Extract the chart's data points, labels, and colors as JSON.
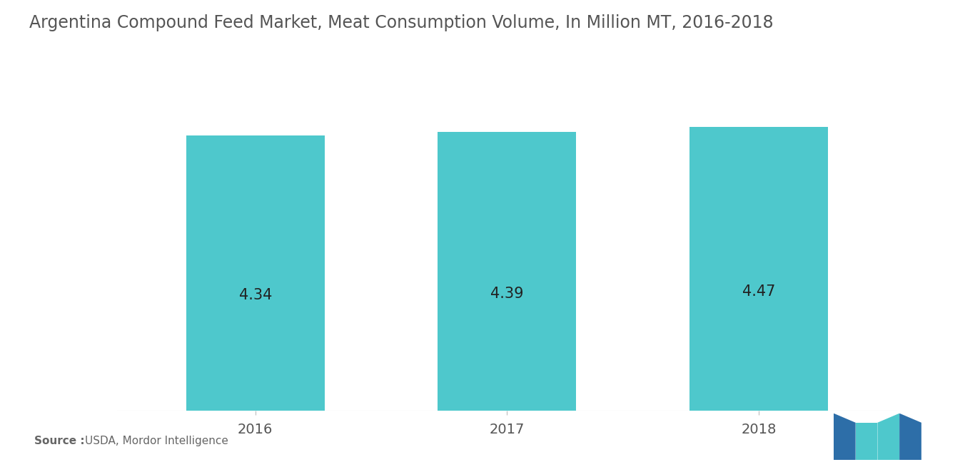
{
  "title": "Argentina Compound Feed Market, Meat Consumption Volume, In Million MT, 2016-2018",
  "categories": [
    "2016",
    "2017",
    "2018"
  ],
  "values": [
    4.34,
    4.39,
    4.47
  ],
  "bar_color": "#4EC8CC",
  "label_color": "#222222",
  "title_color": "#555555",
  "background_color": "#ffffff",
  "ylim_min": 0,
  "ylim_max": 5.0,
  "bar_width": 0.55,
  "title_fontsize": 17,
  "label_fontsize": 15,
  "tick_fontsize": 14,
  "source_bold": "Source :",
  "source_rest": "USDA, Mordor Intelligence",
  "logo_color_dark": "#2D6EA8",
  "logo_color_teal": "#4EC8CC"
}
